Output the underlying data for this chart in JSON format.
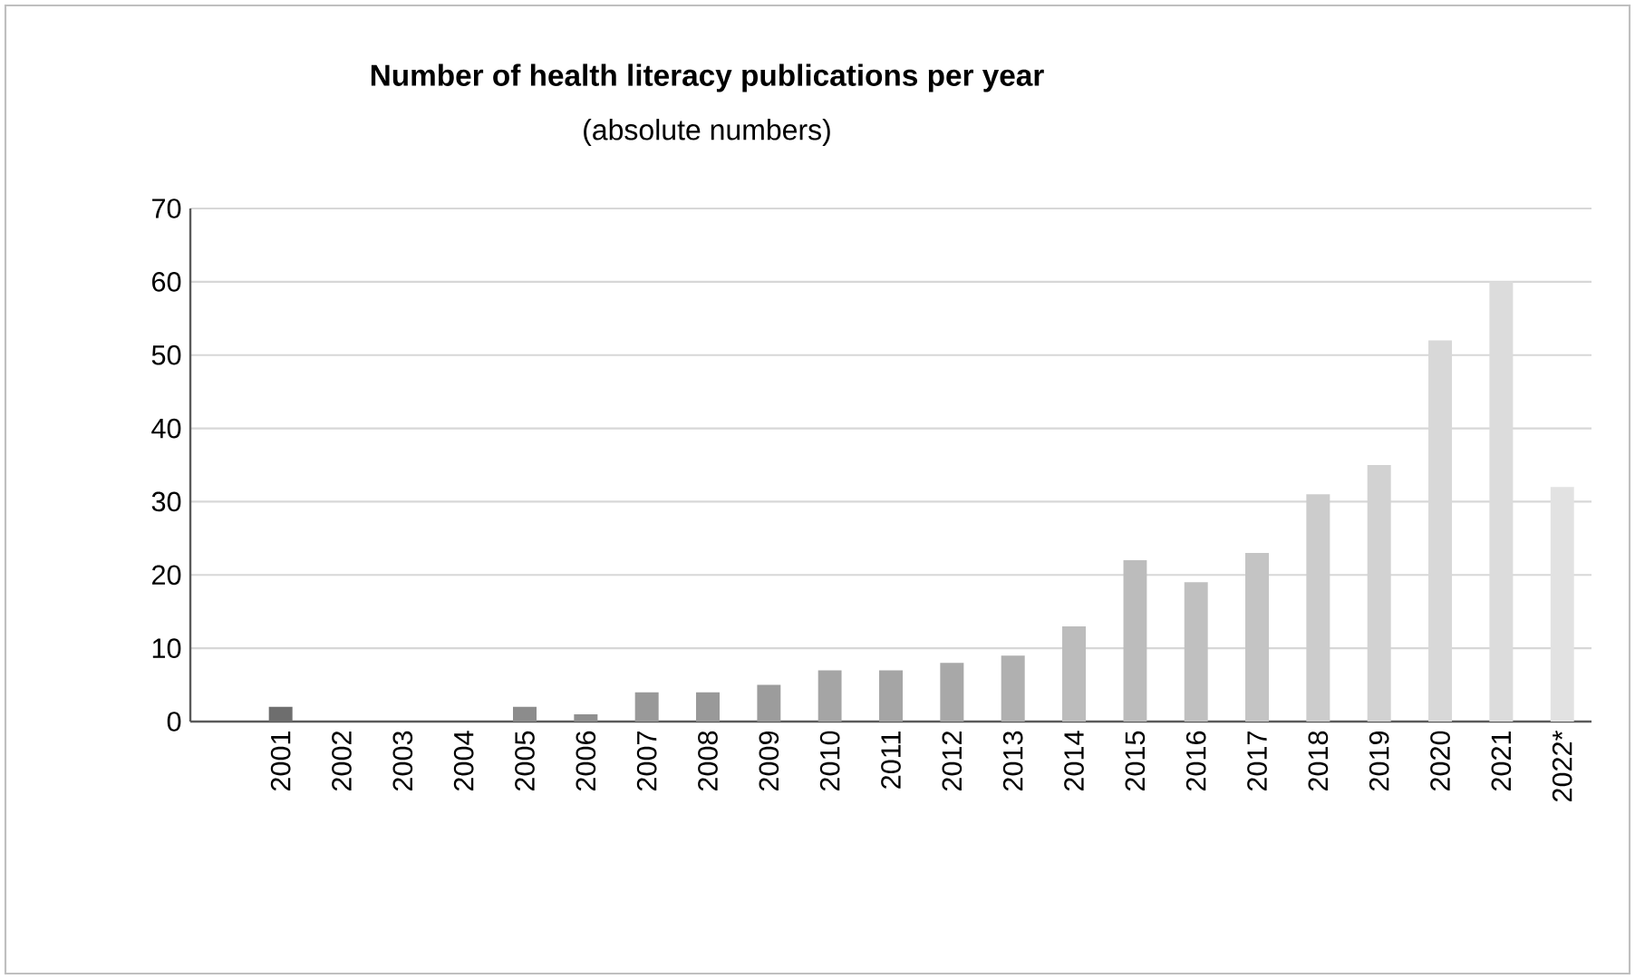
{
  "chart_data": {
    "type": "bar",
    "title": "Number of health literacy publications per year",
    "subtitle": "(absolute numbers)",
    "categories": [
      "2001",
      "2002",
      "2003",
      "2004",
      "2005",
      "2006",
      "2007",
      "2008",
      "2009",
      "2010",
      "2011",
      "2012",
      "2013",
      "2014",
      "2015",
      "2016",
      "2017",
      "2018",
      "2019",
      "2020",
      "2021",
      "2022*"
    ],
    "values": [
      2,
      0,
      0,
      0,
      2,
      1,
      4,
      4,
      5,
      7,
      7,
      8,
      9,
      13,
      22,
      19,
      23,
      31,
      35,
      52,
      60,
      32
    ],
    "colors": [
      "#6e6e6e",
      "#7a7a7a",
      "#808080",
      "#868686",
      "#8c8c8c",
      "#8f8f8f",
      "#999999",
      "#999999",
      "#9c9c9c",
      "#a5a5a5",
      "#a5a5a5",
      "#a8a8a8",
      "#b0b0b0",
      "#bcbcbc",
      "#bcbcbc",
      "#c0c0c0",
      "#c4c4c4",
      "#cccccc",
      "#d2d2d2",
      "#d8d8d8",
      "#dcdcdc",
      "#e2e2e2"
    ],
    "ylim": [
      0,
      70
    ],
    "yticks": [
      0,
      10,
      20,
      30,
      40,
      50,
      60,
      70
    ],
    "grid": "y"
  }
}
